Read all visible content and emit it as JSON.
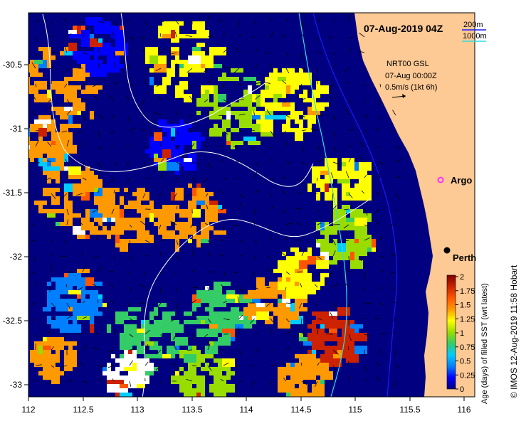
{
  "map": {
    "title": "07-Aug-2019 04Z",
    "contour_legend": {
      "shallow": "200m",
      "deep": "1000m",
      "shallow_color": "#1a1aff",
      "deep_color": "#33dddd"
    },
    "product": {
      "line1": "NRT00 GSL",
      "line2": "07-Aug 00:00Z",
      "line3": "0.5m/s (1kt 6h)"
    },
    "markers": {
      "argo": "Argo",
      "city": "Perth"
    },
    "credit": "© IMOS 12-Aug-2019 11:58 Hobart",
    "colors": {
      "ocean_deep": "#000080",
      "land": "#fdc994",
      "argo": "#ff33ff"
    }
  },
  "axes": {
    "x_ticks": [
      "112",
      "112.5",
      "113",
      "113.5",
      "114",
      "114.5",
      "115",
      "115.5",
      "116"
    ],
    "y_ticks": [
      "-30.5",
      "-31",
      "-31.5",
      "-32",
      "-32.5",
      "-33"
    ]
  },
  "colorbar": {
    "title": "Age (days) of filled SST (wrt latest)",
    "ticks": [
      "2",
      "1.75",
      "1.5",
      "1.25",
      "1",
      "0.75",
      "0.5",
      "0.25",
      "0"
    ],
    "stops": [
      "#000080",
      "#0000ff",
      "#0080ff",
      "#00ccff",
      "#33cc66",
      "#99dd00",
      "#ffff00",
      "#ff9900",
      "#ff5500",
      "#cc2200",
      "#800000"
    ]
  }
}
